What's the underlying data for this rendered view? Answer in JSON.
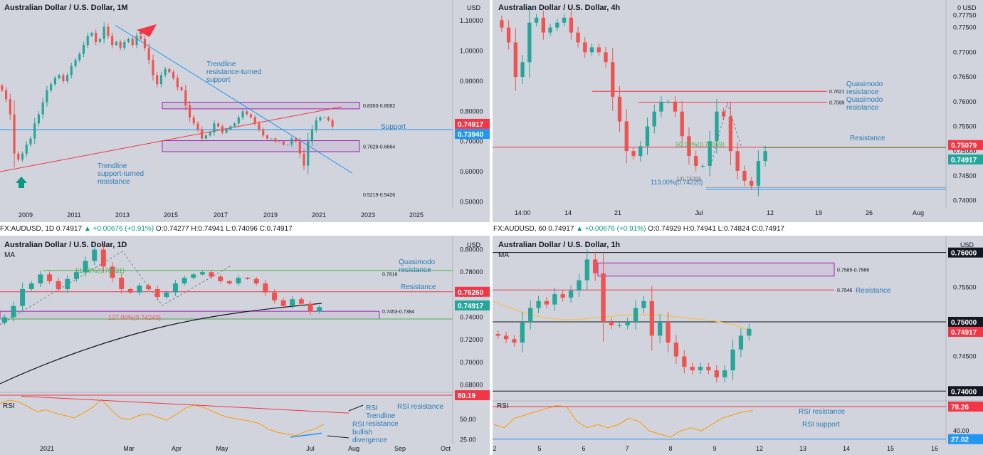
{
  "colors": {
    "bg": "#d1d4dc",
    "up": "#26a69a",
    "down": "#ef5350",
    "blue": "#2196f3",
    "red": "#f23645",
    "purple": "#9c27b0",
    "green": "#4caf50",
    "orange": "#ff9800",
    "text": "#131722",
    "annot": "#2a7ab8"
  },
  "tickers": {
    "daily": {
      "symbol": "FX:AUDUSD, 1D",
      "last": "0.74917",
      "change": "▲ +0.00676 (+0.91%)",
      "ohlc": "O:0.74277 H:0.74941 L:0.74096 C:0.74917"
    },
    "hourly": {
      "symbol": "FX:AUDUSD, 60",
      "last": "0.74917",
      "change": "▲ +0.00676 (+0.91%)",
      "ohlc": "O:0.74929 H:0.74941 L:0.74824 C:0.74917"
    }
  },
  "chart_data": [
    {
      "id": "monthly",
      "type": "candlestick",
      "title": "Australian Dollar / U.S. Dollar, 1M",
      "unit": "USD",
      "x_ticks": [
        "2009",
        "2011",
        "2013",
        "2015",
        "2017",
        "2019",
        "2021",
        "2023",
        "2025"
      ],
      "y_ticks": [
        "1.10000",
        "1.00000",
        "0.90000",
        "0.80000",
        "0.70000",
        "0.60000",
        "0.50000"
      ],
      "ylim": [
        0.48,
        1.15
      ],
      "price_labels": [
        {
          "text": "0.74917",
          "value": 0.74917,
          "color": "#f23645"
        },
        {
          "text": "0.73940",
          "value": 0.7394,
          "color": "#2196f3"
        }
      ],
      "zones": [
        {
          "label": "0.8303-0.8082",
          "from": 0.8303,
          "to": 0.8082
        },
        {
          "label": "0.7029-0.6664",
          "from": 0.7029,
          "to": 0.6664
        }
      ],
      "level_labels": [
        "0.5219-0.5426"
      ],
      "annotations": [
        "Trendline resistance-turned support",
        "Trendline support-turned resistance",
        "Support"
      ],
      "series": [
        {
          "values": [
            0.87,
            0.84,
            0.79,
            0.66,
            0.64,
            0.66,
            0.69,
            0.71,
            0.76,
            0.79,
            0.83,
            0.87,
            0.89,
            0.91,
            0.92,
            0.9,
            0.92,
            0.95,
            0.97,
            0.99,
            1.02,
            1.05,
            1.06,
            1.03,
            1.04,
            1.08,
            1.05,
            1.02,
            1.03,
            1.01,
            1.03,
            1.04,
            1.02,
            1.05,
            1.04,
            1.01,
            0.97,
            0.92,
            0.89,
            0.92,
            0.94,
            0.93,
            0.91,
            0.88,
            0.87,
            0.82,
            0.78,
            0.76,
            0.74,
            0.71,
            0.72,
            0.73,
            0.76,
            0.75,
            0.73,
            0.74,
            0.75,
            0.76,
            0.78,
            0.8,
            0.79,
            0.78,
            0.76,
            0.74,
            0.72,
            0.71,
            0.71,
            0.7,
            0.7,
            0.69,
            0.69,
            0.71,
            0.7,
            0.66,
            0.62,
            0.7,
            0.74,
            0.77,
            0.78,
            0.78,
            0.77,
            0.75
          ]
        }
      ]
    },
    {
      "id": "h4",
      "type": "candlestick",
      "title": "Australian Dollar / U.S. Dollar, 4h",
      "unit": "USD",
      "x_ticks": [
        "14:00",
        "14",
        "21",
        "Jul",
        "12",
        "19",
        "26",
        "Aug"
      ],
      "y_ticks": [
        "0.77750",
        "0.77500",
        "0.77000",
        "0.76500",
        "0.76000",
        "0.75500",
        "0.75000",
        "0.74500",
        "0.74000"
      ],
      "ylim": [
        0.7385,
        0.78
      ],
      "price_labels": [
        {
          "text": "0.75079",
          "value": 0.75079,
          "color": "#f23645"
        },
        {
          "text": "0.74917",
          "value": 0.74917,
          "color": "#26a69a"
        }
      ],
      "levels": [
        {
          "label": "0.7621",
          "value": 0.7621
        },
        {
          "label": "0.7599",
          "value": 0.7599
        }
      ],
      "annotations": [
        "Quasimodo resistance",
        "Quasimodo resistance",
        "Resistance",
        "50.00%(0.75069)",
        "113.00%(0.74225)",
        "1/0.74265"
      ],
      "series": [
        {
          "values": [
            0.775,
            0.772,
            0.765,
            0.768,
            0.776,
            0.777,
            0.774,
            0.775,
            0.776,
            0.777,
            0.774,
            0.772,
            0.77,
            0.771,
            0.77,
            0.768,
            0.761,
            0.756,
            0.75,
            0.749,
            0.751,
            0.755,
            0.758,
            0.76,
            0.76,
            0.758,
            0.753,
            0.749,
            0.747,
            0.747,
            0.752,
            0.758,
            0.757,
            0.75,
            0.746,
            0.744,
            0.743,
            0.748,
            0.75
          ]
        }
      ]
    },
    {
      "id": "daily",
      "type": "candlestick",
      "title": "Australian Dollar / U.S. Dollar, 1D",
      "unit": "USD",
      "study": "MA",
      "x_ticks": [
        "2021",
        "Mar",
        "Apr",
        "May",
        "Jul",
        "Aug",
        "Sep",
        "Oct"
      ],
      "y_ticks": [
        "0.80000",
        "0.78000",
        "0.76000",
        "0.74000",
        "0.72000",
        "0.70000",
        "0.68000"
      ],
      "ylim": [
        0.6765,
        0.801
      ],
      "price_labels": [
        {
          "text": "0.76260",
          "value": 0.7626,
          "color": "#f23645"
        },
        {
          "text": "0.74917",
          "value": 0.74917,
          "color": "#26a69a"
        }
      ],
      "levels": [
        {
          "label": "0.7816",
          "value": 0.7816
        }
      ],
      "zones": [
        {
          "label": "0.7453-0.7384",
          "from": 0.7453,
          "to": 0.7384
        }
      ],
      "annotations": [
        "Quasimodo resistance",
        "Resistance",
        "61.80%(0.78331)",
        "127.00%(0.74243)"
      ],
      "series": [
        {
          "values": [
            0.74,
            0.75,
            0.765,
            0.77,
            0.778,
            0.772,
            0.765,
            0.774,
            0.78,
            0.79,
            0.8,
            0.785,
            0.775,
            0.765,
            0.762,
            0.768,
            0.765,
            0.758,
            0.762,
            0.77,
            0.775,
            0.778,
            0.78,
            0.776,
            0.772,
            0.77,
            0.775,
            0.774,
            0.77,
            0.762,
            0.755,
            0.75,
            0.756,
            0.752,
            0.745,
            0.749
          ]
        }
      ],
      "rsi": {
        "label": "RSI",
        "y_ticks": [
          "50.00",
          "25.00"
        ],
        "ylim": [
          20,
          82
        ],
        "value_labels": [
          {
            "text": "80.19",
            "value": 80.19
          }
        ],
        "values": [
          70,
          74,
          72,
          66,
          60,
          62,
          58,
          55,
          52,
          58,
          65,
          75,
          62,
          52,
          50,
          55,
          57,
          53,
          49,
          56,
          64,
          68,
          65,
          60,
          55,
          52,
          50,
          48,
          45,
          38,
          34,
          32,
          30,
          35,
          38,
          44
        ],
        "annotations": [
          "RSI resistance",
          "RSI Trendline resistance",
          "RSI bullish divergence"
        ]
      }
    },
    {
      "id": "hourly",
      "type": "candlestick",
      "title": "Australian Dollar / U.S. Dollar, 1h",
      "unit": "USD",
      "study": "MA",
      "x_ticks": [
        "2",
        "5",
        "6",
        "7",
        "8",
        "9",
        "12",
        "13",
        "14",
        "15",
        "16"
      ],
      "y_ticks": [
        "0.76000",
        "0.75500",
        "0.75000",
        "0.74500",
        "0.74000"
      ],
      "ylim": [
        0.739,
        0.7612
      ],
      "price_labels": [
        {
          "text": "0.76000",
          "value": 0.76,
          "color": "#131722"
        },
        {
          "text": "0.75000",
          "value": 0.75,
          "color": "#131722"
        },
        {
          "text": "0.74917",
          "value": 0.74917,
          "color": "#f23645"
        },
        {
          "text": "0.74000",
          "value": 0.74,
          "color": "#131722"
        }
      ],
      "levels": [
        {
          "label": "0.7546",
          "value": 0.7546
        }
      ],
      "zones": [
        {
          "label": "0.7585-0.7566",
          "from": 0.7585,
          "to": 0.7566
        }
      ],
      "annotations": [
        "Resistance"
      ],
      "series": [
        {
          "values": [
            0.748,
            0.7475,
            0.747,
            0.75,
            0.752,
            0.753,
            0.7525,
            0.754,
            0.7535,
            0.7545,
            0.756,
            0.759,
            0.757,
            0.75,
            0.7495,
            0.7495,
            0.75,
            0.752,
            0.753,
            0.748,
            0.75,
            0.747,
            0.745,
            0.7435,
            0.743,
            0.7435,
            0.743,
            0.742,
            0.743,
            0.746,
            0.748,
            0.749
          ]
        }
      ],
      "rsi": {
        "label": "RSI",
        "y_ticks": [
          "40.00"
        ],
        "ylim": [
          20,
          85
        ],
        "value_labels": [
          {
            "text": "78.26",
            "value": 78.26
          },
          {
            "text": "27.02",
            "value": 27.02
          }
        ],
        "values": [
          50,
          45,
          60,
          65,
          70,
          75,
          80,
          78,
          55,
          45,
          50,
          45,
          50,
          60,
          55,
          40,
          35,
          30,
          40,
          45,
          40,
          50,
          60,
          65,
          70,
          72
        ],
        "annotations": [
          "RSI resistance",
          "RSI support"
        ]
      }
    }
  ]
}
